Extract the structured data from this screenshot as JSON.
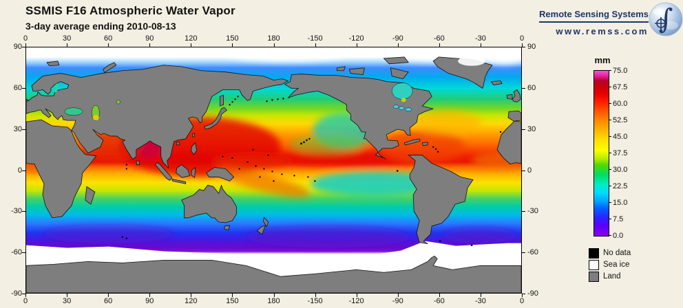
{
  "header": {
    "title": "SSMIS F16 Atmospheric Water Vapor",
    "subtitle": "3-day average ending 2010-08-13"
  },
  "logo": {
    "name": "Remote Sensing Systems",
    "url": "www.remss.com"
  },
  "colorbar": {
    "unit": "mm",
    "ticks": [
      "75.0",
      "67.5",
      "60.0",
      "52.5",
      "45.0",
      "37.5",
      "30.0",
      "22.5",
      "15.0",
      "7.5",
      "0.0"
    ],
    "min": 0.0,
    "max": 75.0
  },
  "legend": {
    "items": [
      {
        "label": "No data",
        "color": "#000000"
      },
      {
        "label": "Sea ice",
        "color": "#FFFFFF"
      },
      {
        "label": "Land",
        "color": "#7E7E7E"
      }
    ]
  },
  "axes": {
    "lon_labels": [
      "0",
      "30",
      "60",
      "90",
      "120",
      "150",
      "180",
      "-150",
      "-120",
      "-90",
      "-60",
      "-30",
      "0"
    ],
    "lat_labels": [
      "90",
      "60",
      "30",
      "0",
      "-30",
      "-60",
      "-90"
    ]
  },
  "colors": {
    "background": "#F3EFE2",
    "logo_navy": "#1E3566",
    "land": "#7E7E7E",
    "sea_ice": "#FFFFFF",
    "no_data": "#000000"
  }
}
